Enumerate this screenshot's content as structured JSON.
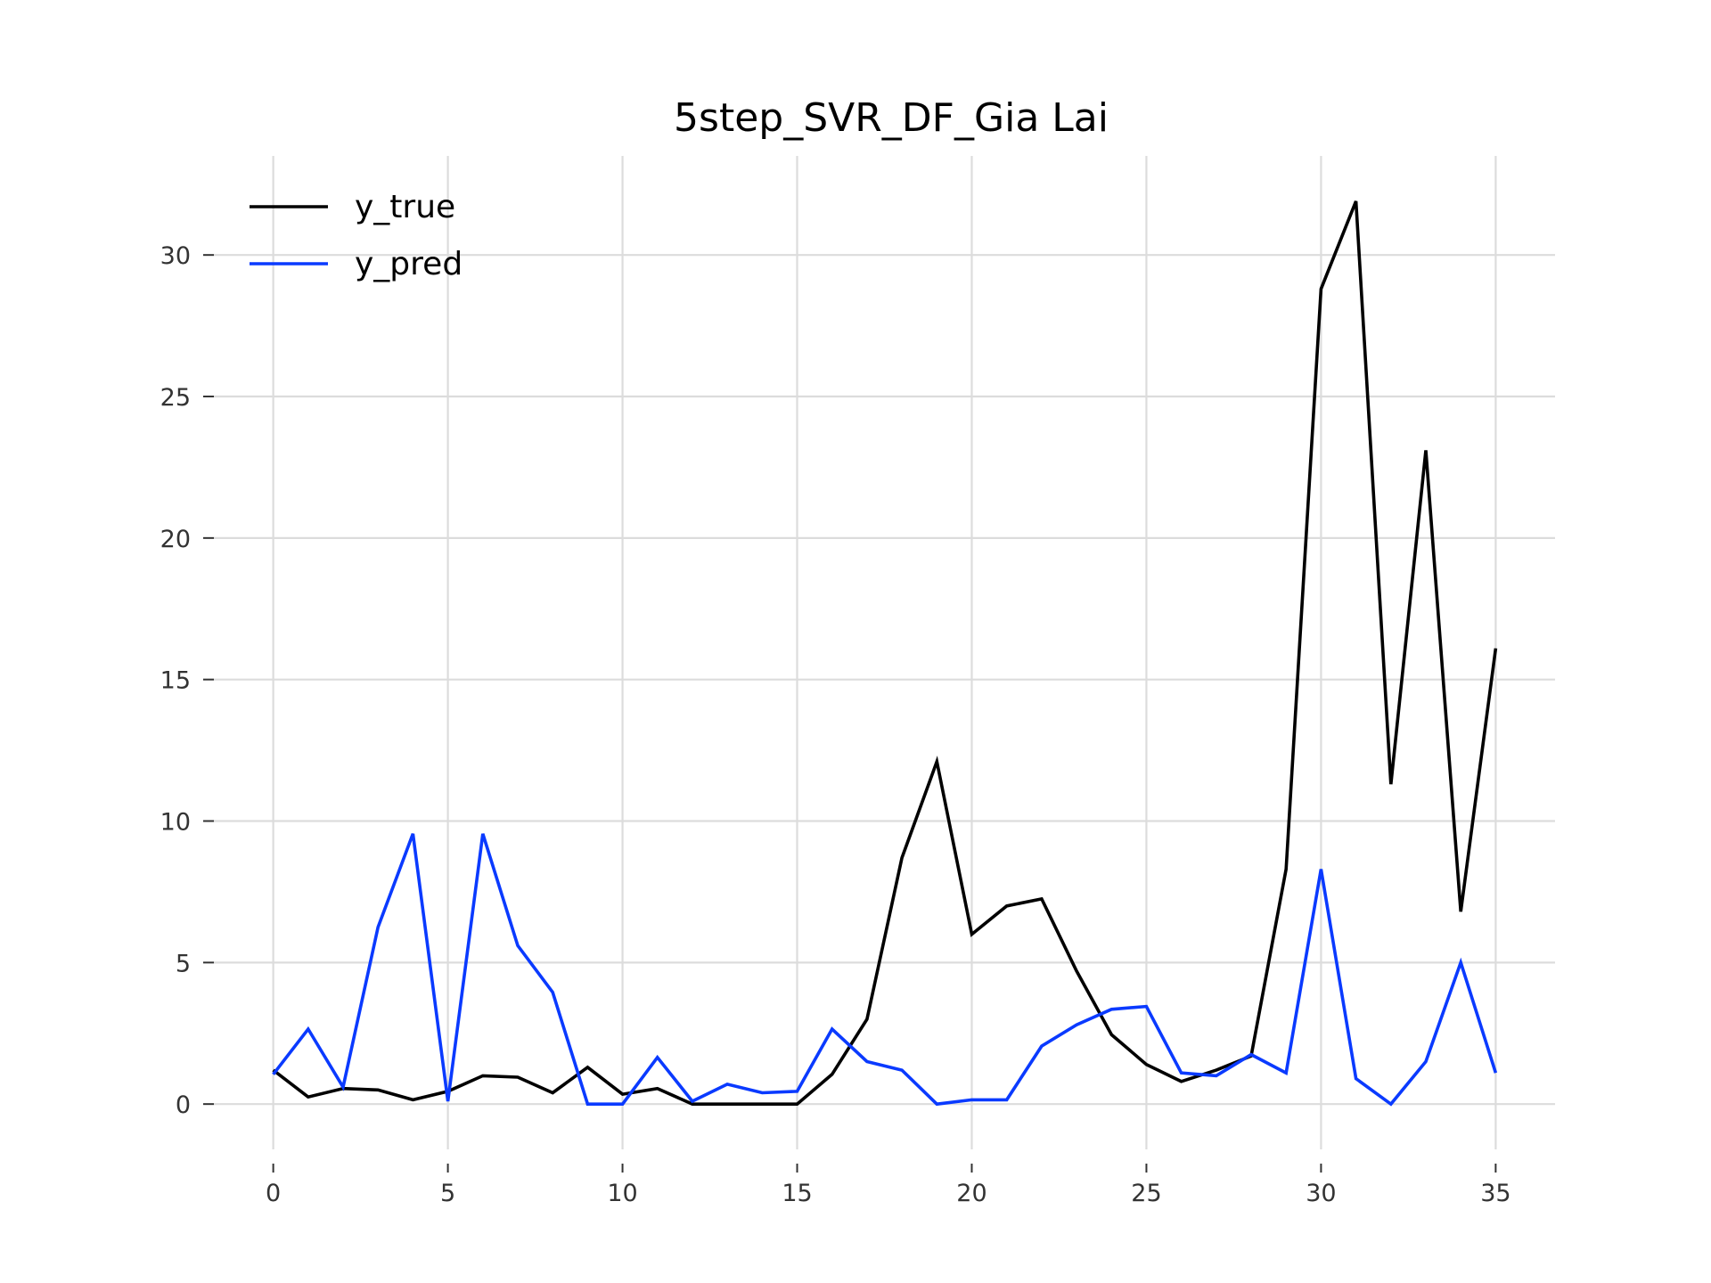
{
  "chart_data": {
    "type": "line",
    "title": "5step_SVR_DF_Gia Lai",
    "xlabel": "",
    "ylabel": "",
    "xlim": [
      -1.7,
      36.7
    ],
    "ylim": [
      -1.6,
      33.5
    ],
    "xticks": [
      0,
      5,
      10,
      15,
      20,
      25,
      30,
      35
    ],
    "yticks": [
      0,
      5,
      10,
      15,
      20,
      25,
      30
    ],
    "grid": true,
    "legend_position": "top-left",
    "x": [
      0,
      1,
      2,
      3,
      4,
      5,
      6,
      7,
      8,
      9,
      10,
      11,
      12,
      13,
      14,
      15,
      16,
      17,
      18,
      19,
      20,
      21,
      22,
      23,
      24,
      25,
      26,
      27,
      28,
      29,
      30,
      31,
      32,
      33,
      34,
      35
    ],
    "series": [
      {
        "name": "y_true",
        "color": "#000000",
        "values": [
          1.2,
          0.25,
          0.55,
          0.5,
          0.15,
          0.45,
          1.0,
          0.95,
          0.4,
          1.3,
          0.35,
          0.55,
          0.0,
          0.0,
          0.0,
          0.0,
          1.05,
          3.0,
          8.7,
          12.1,
          6.0,
          7.0,
          7.25,
          4.7,
          2.45,
          1.4,
          0.8,
          1.2,
          1.7,
          8.3,
          28.8,
          31.9,
          11.3,
          23.1,
          6.8,
          16.1
        ]
      },
      {
        "name": "y_pred",
        "color": "#0a3aff",
        "values": [
          1.05,
          2.65,
          0.6,
          6.25,
          9.55,
          0.1,
          9.55,
          5.6,
          3.95,
          0.0,
          0.0,
          1.65,
          0.1,
          0.7,
          0.4,
          0.45,
          2.65,
          1.5,
          1.2,
          0.0,
          0.15,
          0.15,
          2.05,
          2.8,
          3.35,
          3.45,
          1.1,
          1.0,
          1.75,
          1.1,
          8.3,
          0.9,
          0.0,
          1.5,
          5.0,
          1.1
        ]
      }
    ]
  }
}
